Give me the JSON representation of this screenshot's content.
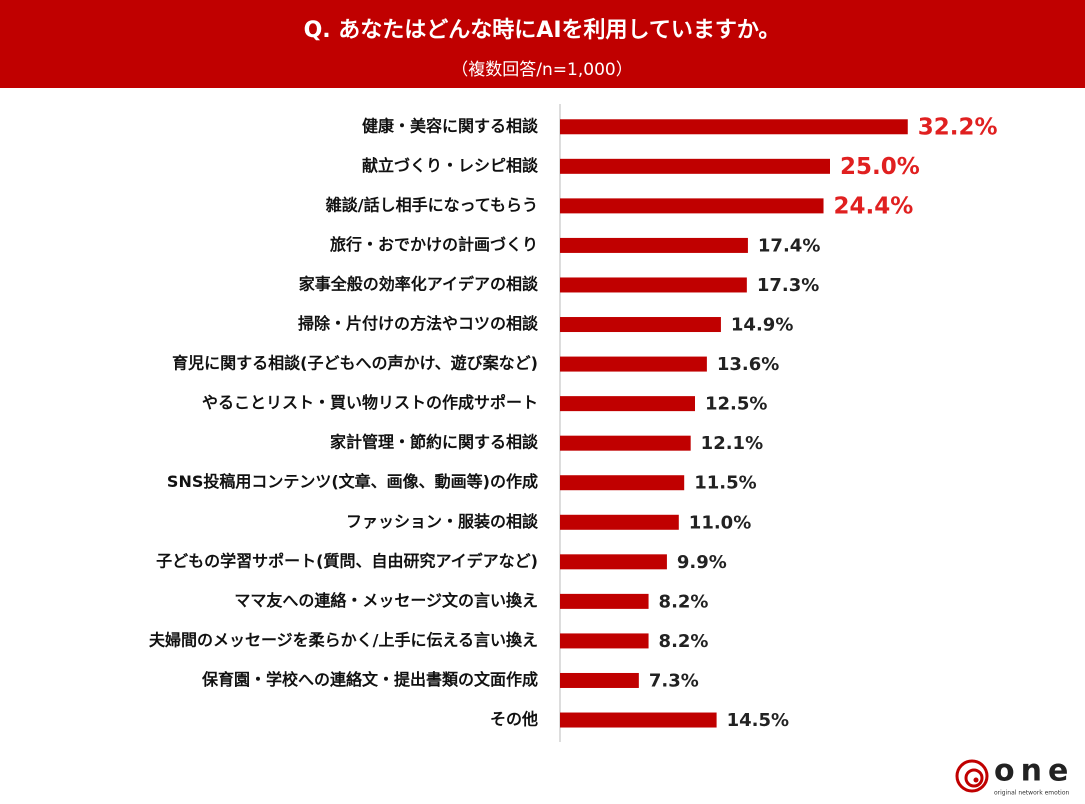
{
  "chart_data": {
    "type": "barh",
    "title": "Q. あなたはどんな時にAIを利用していますか。",
    "subtitle": "（複数回答/n=1,000）",
    "categories": [
      "健康・美容に関する相談",
      "献立づくり・レシピ相談",
      "雑談/話し相手になってもらう",
      "旅行・おでかけの計画づくり",
      "家事全般の効率化アイデアの相談",
      "掃除・片付けの方法やコツの相談",
      "育児に関する相談(子どもへの声かけ、遊び案など)",
      "やることリスト・買い物リストの作成サポート",
      "家計管理・節約に関する相談",
      "SNS投稿用コンテンツ(文章、画像、動画等)の作成",
      "ファッション・服装の相談",
      "子どもの学習サポート(質問、自由研究アイデアなど)",
      "ママ友への連絡・メッセージ文の言い換え",
      "夫婦間のメッセージを柔らかく/上手に伝える言い換え",
      "保育園・学校への連絡文・提出書類の文面作成",
      "その他"
    ],
    "values": [
      32.2,
      25.0,
      24.4,
      17.4,
      17.3,
      14.9,
      13.6,
      12.5,
      12.1,
      11.5,
      11.0,
      9.9,
      8.2,
      8.2,
      7.3,
      14.5
    ],
    "value_labels": [
      "32.2%",
      "25.0%",
      "24.4%",
      "17.4%",
      "17.3%",
      "14.9%",
      "13.6%",
      "12.5%",
      "12.1%",
      "11.5%",
      "11.0%",
      "9.9%",
      "8.2%",
      "8.2%",
      "7.3%",
      "14.5%"
    ],
    "value_label_colors": [
      "#e02020",
      "#e02020",
      "#e02020",
      "#222222",
      "#222222",
      "#222222",
      "#222222",
      "#222222",
      "#222222",
      "#222222",
      "#222222",
      "#222222",
      "#222222",
      "#222222",
      "#222222",
      "#222222"
    ],
    "color": "#c00000",
    "xlim": [
      0,
      35
    ]
  },
  "logo": {
    "text": "one",
    "tagline": "original network emotion"
  }
}
